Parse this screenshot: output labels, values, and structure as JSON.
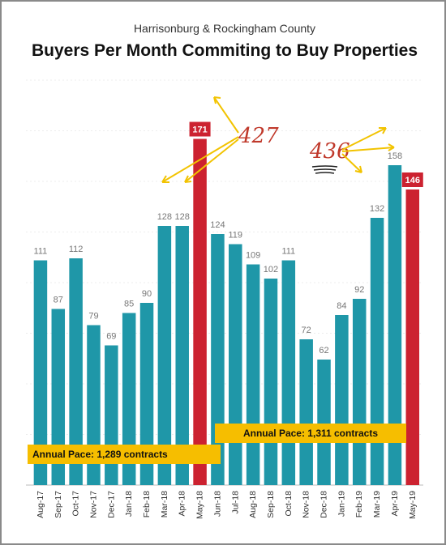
{
  "chart_data": {
    "type": "bar",
    "subtitle": "Harrisonburg & Rockingham County",
    "title": "Buyers Per Month Commiting to Buy Properties",
    "categories": [
      "Aug-17",
      "Sep-17",
      "Oct-17",
      "Nov-17",
      "Dec-17",
      "Jan-18",
      "Feb-18",
      "Mar-18",
      "Apr-18",
      "May-18",
      "Jun-18",
      "Jul-18",
      "Aug-18",
      "Sep-18",
      "Oct-18",
      "Nov-18",
      "Dec-18",
      "Jan-19",
      "Feb-19",
      "Mar-19",
      "Apr-19",
      "May-19"
    ],
    "values": [
      111,
      87,
      112,
      79,
      69,
      85,
      90,
      128,
      128,
      171,
      124,
      119,
      109,
      102,
      111,
      72,
      62,
      84,
      92,
      132,
      158,
      146
    ],
    "highlighted_categories": [
      "May-18",
      "May-19"
    ],
    "ylim": [
      0,
      200
    ],
    "grid": true,
    "colors": {
      "bar": "#1f97a8",
      "highlight": "#cc2230",
      "pace_box": "#f6be00",
      "annotation": "#f2c300",
      "handwriting": "#c0392b"
    },
    "annotations": {
      "pace_2018": "Annual Pace: 1,289 contracts",
      "pace_2019": "Annual Pace: 1,311 contracts",
      "sum_2018": "427",
      "sum_2019": "436"
    }
  }
}
